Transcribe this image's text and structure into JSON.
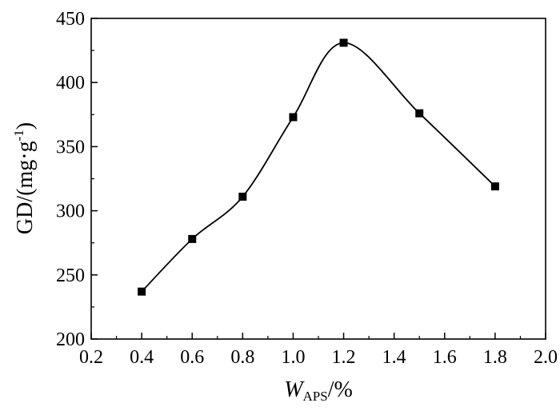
{
  "chart_data": {
    "type": "line",
    "title": "",
    "xlabel_main": "W",
    "xlabel_sub": "APS",
    "xlabel_unit": "/%",
    "ylabel_main": "GD/(mg·g",
    "ylabel_sup": "-1",
    "ylabel_close": ")",
    "xlim": [
      0.2,
      2.0
    ],
    "ylim": [
      200,
      450
    ],
    "x_ticks": [
      "0.2",
      "0.4",
      "0.6",
      "0.8",
      "1.0",
      "1.2",
      "1.4",
      "1.6",
      "1.8",
      "2.0"
    ],
    "y_ticks": [
      "200",
      "250",
      "300",
      "350",
      "400",
      "450"
    ],
    "grid": false,
    "series": [
      {
        "marker": "square",
        "smooth": true,
        "color": "#000000",
        "x": [
          0.4,
          0.6,
          0.8,
          1.0,
          1.2,
          1.5,
          1.8
        ],
        "y": [
          237,
          278,
          311,
          373,
          431,
          376,
          319
        ]
      }
    ]
  }
}
